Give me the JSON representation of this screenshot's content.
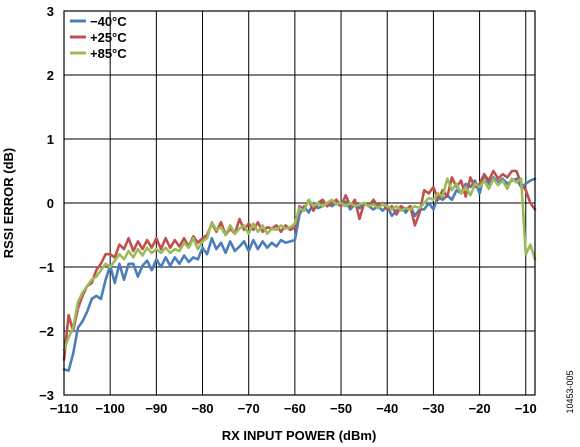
{
  "chart_data": {
    "type": "line",
    "title": "",
    "xlabel": "RX INPUT POWER (dBm)",
    "ylabel": "RSSI ERROR (dB)",
    "xlim": [
      -110,
      -8
    ],
    "ylim": [
      -3,
      3
    ],
    "x_ticks": [
      "−110",
      "−100",
      "−90",
      "−80",
      "−70",
      "−60",
      "−50",
      "−40",
      "−30",
      "−20",
      "−10"
    ],
    "x_tick_values": [
      -110,
      -100,
      -90,
      -80,
      -70,
      -60,
      -50,
      -40,
      -30,
      -20,
      -10
    ],
    "y_ticks": [
      "−3",
      "−2",
      "−1",
      "0",
      "1",
      "2",
      "3"
    ],
    "y_tick_values": [
      -3,
      -2,
      -1,
      0,
      1,
      2,
      3
    ],
    "grid": true,
    "legend_position": "top-left",
    "figure_id": "10453-005",
    "series": [
      {
        "name": "−40°C",
        "color": "#4a7ebb",
        "points": [
          [
            -110,
            -2.6
          ],
          [
            -109,
            -2.62
          ],
          [
            -108,
            -2.35
          ],
          [
            -107,
            -1.95
          ],
          [
            -106,
            -1.85
          ],
          [
            -105,
            -1.7
          ],
          [
            -104,
            -1.5
          ],
          [
            -103,
            -1.45
          ],
          [
            -102,
            -1.5
          ],
          [
            -101,
            -1.2
          ],
          [
            -100,
            -0.98
          ],
          [
            -99,
            -1.25
          ],
          [
            -98,
            -0.95
          ],
          [
            -97,
            -1.2
          ],
          [
            -96,
            -0.95
          ],
          [
            -95,
            -0.95
          ],
          [
            -94,
            -1.15
          ],
          [
            -93,
            -0.98
          ],
          [
            -92,
            -0.9
          ],
          [
            -91,
            -1.05
          ],
          [
            -90,
            -0.88
          ],
          [
            -89,
            -1.0
          ],
          [
            -88,
            -0.85
          ],
          [
            -87,
            -0.98
          ],
          [
            -86,
            -0.85
          ],
          [
            -85,
            -0.95
          ],
          [
            -84,
            -0.82
          ],
          [
            -83,
            -0.92
          ],
          [
            -82,
            -0.85
          ],
          [
            -81,
            -0.88
          ],
          [
            -80,
            -0.7
          ],
          [
            -79,
            -0.8
          ],
          [
            -78,
            -0.55
          ],
          [
            -77,
            -0.72
          ],
          [
            -76,
            -0.62
          ],
          [
            -75,
            -0.78
          ],
          [
            -74,
            -0.6
          ],
          [
            -73,
            -0.75
          ],
          [
            -72,
            -0.68
          ],
          [
            -71,
            -0.6
          ],
          [
            -70,
            -0.75
          ],
          [
            -69,
            -0.58
          ],
          [
            -68,
            -0.72
          ],
          [
            -67,
            -0.6
          ],
          [
            -66,
            -0.7
          ],
          [
            -65,
            -0.62
          ],
          [
            -64,
            -0.68
          ],
          [
            -63,
            -0.58
          ],
          [
            -62,
            -0.62
          ],
          [
            -61,
            -0.6
          ],
          [
            -60,
            -0.58
          ],
          [
            -59,
            -0.18
          ],
          [
            -58,
            -0.05
          ],
          [
            -57,
            -0.15
          ],
          [
            -56,
            0.0
          ],
          [
            -55,
            -0.08
          ],
          [
            -54,
            -0.05
          ],
          [
            -53,
            0.0
          ],
          [
            -52,
            -0.05
          ],
          [
            -51,
            0.0
          ],
          [
            -50,
            -0.05
          ],
          [
            -49,
            0.02
          ],
          [
            -48,
            -0.1
          ],
          [
            -47,
            -0.02
          ],
          [
            -46,
            -0.08
          ],
          [
            -45,
            0.0
          ],
          [
            -44,
            -0.05
          ],
          [
            -43,
            -0.1
          ],
          [
            -42,
            -0.05
          ],
          [
            -41,
            -0.12
          ],
          [
            -40,
            -0.05
          ],
          [
            -39,
            -0.2
          ],
          [
            -38,
            -0.12
          ],
          [
            -37,
            -0.05
          ],
          [
            -36,
            -0.15
          ],
          [
            -35,
            -0.05
          ],
          [
            -34,
            -0.2
          ],
          [
            -33,
            -0.1
          ],
          [
            -32,
            -0.1
          ],
          [
            -31,
            0.0
          ],
          [
            -30,
            -0.1
          ],
          [
            -29,
            0.1
          ],
          [
            -28,
            0.05
          ],
          [
            -27,
            0.12
          ],
          [
            -26,
            0.05
          ],
          [
            -25,
            0.2
          ],
          [
            -24,
            0.15
          ],
          [
            -23,
            0.3
          ],
          [
            -22,
            0.25
          ],
          [
            -21,
            0.35
          ],
          [
            -20,
            0.15
          ],
          [
            -19,
            0.45
          ],
          [
            -18,
            0.3
          ],
          [
            -17,
            0.4
          ],
          [
            -16,
            0.32
          ],
          [
            -15,
            0.38
          ],
          [
            -14,
            0.3
          ],
          [
            -13,
            0.35
          ],
          [
            -12,
            0.38
          ],
          [
            -11,
            0.25
          ],
          [
            -10,
            0.3
          ],
          [
            -9,
            0.35
          ],
          [
            -8,
            0.38
          ]
        ]
      },
      {
        "name": "+25°C",
        "color": "#c0504d",
        "points": [
          [
            -110,
            -2.45
          ],
          [
            -109,
            -1.75
          ],
          [
            -108,
            -2.0
          ],
          [
            -107,
            -1.65
          ],
          [
            -106,
            -1.45
          ],
          [
            -105,
            -1.3
          ],
          [
            -104,
            -1.25
          ],
          [
            -103,
            -1.05
          ],
          [
            -102,
            -0.95
          ],
          [
            -101,
            -0.8
          ],
          [
            -100,
            -0.8
          ],
          [
            -99,
            -0.85
          ],
          [
            -98,
            -0.65
          ],
          [
            -97,
            -0.72
          ],
          [
            -96,
            -0.55
          ],
          [
            -95,
            -0.75
          ],
          [
            -94,
            -0.6
          ],
          [
            -93,
            -0.72
          ],
          [
            -92,
            -0.58
          ],
          [
            -91,
            -0.7
          ],
          [
            -90,
            -0.55
          ],
          [
            -89,
            -0.72
          ],
          [
            -88,
            -0.55
          ],
          [
            -87,
            -0.7
          ],
          [
            -86,
            -0.58
          ],
          [
            -85,
            -0.68
          ],
          [
            -84,
            -0.55
          ],
          [
            -83,
            -0.68
          ],
          [
            -82,
            -0.52
          ],
          [
            -81,
            -0.62
          ],
          [
            -80,
            -0.55
          ],
          [
            -79,
            -0.5
          ],
          [
            -78,
            -0.32
          ],
          [
            -77,
            -0.45
          ],
          [
            -76,
            -0.3
          ],
          [
            -75,
            -0.5
          ],
          [
            -74,
            -0.4
          ],
          [
            -73,
            -0.48
          ],
          [
            -72,
            -0.25
          ],
          [
            -71,
            -0.42
          ],
          [
            -70,
            -0.32
          ],
          [
            -69,
            -0.42
          ],
          [
            -68,
            -0.3
          ],
          [
            -67,
            -0.45
          ],
          [
            -66,
            -0.38
          ],
          [
            -65,
            -0.4
          ],
          [
            -64,
            -0.35
          ],
          [
            -63,
            -0.45
          ],
          [
            -62,
            -0.35
          ],
          [
            -61,
            -0.42
          ],
          [
            -60,
            -0.38
          ],
          [
            -59,
            -0.05
          ],
          [
            -58,
            -0.1
          ],
          [
            -57,
            0.05
          ],
          [
            -56,
            -0.12
          ],
          [
            -55,
            0.0
          ],
          [
            -54,
            0.05
          ],
          [
            -53,
            -0.05
          ],
          [
            -52,
            0.0
          ],
          [
            -51,
            0.05
          ],
          [
            -50,
            -0.05
          ],
          [
            -49,
            0.12
          ],
          [
            -48,
            -0.05
          ],
          [
            -47,
            0.05
          ],
          [
            -46,
            -0.25
          ],
          [
            -45,
            0.0
          ],
          [
            -44,
            -0.05
          ],
          [
            -43,
            0.05
          ],
          [
            -42,
            -0.05
          ],
          [
            -41,
            0.0
          ],
          [
            -40,
            -0.1
          ],
          [
            -39,
            -0.05
          ],
          [
            -38,
            -0.18
          ],
          [
            -37,
            -0.05
          ],
          [
            -36,
            -0.1
          ],
          [
            -35,
            -0.05
          ],
          [
            -34,
            -0.35
          ],
          [
            -33,
            -0.15
          ],
          [
            -32,
            0.2
          ],
          [
            -31,
            0.15
          ],
          [
            -30,
            0.25
          ],
          [
            -29,
            0.05
          ],
          [
            -28,
            0.2
          ],
          [
            -27,
            0.1
          ],
          [
            -26,
            0.4
          ],
          [
            -25,
            0.25
          ],
          [
            -24,
            0.35
          ],
          [
            -23,
            0.1
          ],
          [
            -22,
            0.4
          ],
          [
            -21,
            0.25
          ],
          [
            -20,
            0.3
          ],
          [
            -19,
            0.45
          ],
          [
            -18,
            0.35
          ],
          [
            -17,
            0.5
          ],
          [
            -16,
            0.38
          ],
          [
            -15,
            0.45
          ],
          [
            -14,
            0.4
          ],
          [
            -13,
            0.5
          ],
          [
            -12,
            0.5
          ],
          [
            -11,
            0.3
          ],
          [
            -10,
            0.2
          ],
          [
            -9,
            0.0
          ],
          [
            -8,
            -0.1
          ]
        ]
      },
      {
        "name": "+85°C",
        "color": "#9bbb59",
        "points": [
          [
            -110,
            -2.3
          ],
          [
            -109,
            -2.1
          ],
          [
            -108,
            -1.95
          ],
          [
            -107,
            -1.55
          ],
          [
            -106,
            -1.4
          ],
          [
            -105,
            -1.3
          ],
          [
            -104,
            -1.2
          ],
          [
            -103,
            -1.15
          ],
          [
            -102,
            -1.05
          ],
          [
            -101,
            -0.95
          ],
          [
            -100,
            -1.0
          ],
          [
            -99,
            -0.9
          ],
          [
            -98,
            -0.8
          ],
          [
            -97,
            -0.88
          ],
          [
            -96,
            -0.75
          ],
          [
            -95,
            -0.85
          ],
          [
            -94,
            -0.72
          ],
          [
            -93,
            -0.82
          ],
          [
            -92,
            -0.7
          ],
          [
            -91,
            -0.78
          ],
          [
            -90,
            -0.72
          ],
          [
            -89,
            -0.78
          ],
          [
            -88,
            -0.7
          ],
          [
            -87,
            -0.78
          ],
          [
            -86,
            -0.72
          ],
          [
            -85,
            -0.75
          ],
          [
            -84,
            -0.62
          ],
          [
            -83,
            -0.7
          ],
          [
            -82,
            -0.55
          ],
          [
            -81,
            -0.72
          ],
          [
            -80,
            -0.6
          ],
          [
            -79,
            -0.55
          ],
          [
            -78,
            -0.3
          ],
          [
            -77,
            -0.42
          ],
          [
            -76,
            -0.38
          ],
          [
            -75,
            -0.5
          ],
          [
            -74,
            -0.35
          ],
          [
            -73,
            -0.48
          ],
          [
            -72,
            -0.4
          ],
          [
            -71,
            -0.35
          ],
          [
            -70,
            -0.48
          ],
          [
            -69,
            -0.32
          ],
          [
            -68,
            -0.45
          ],
          [
            -67,
            -0.35
          ],
          [
            -66,
            -0.48
          ],
          [
            -65,
            -0.4
          ],
          [
            -64,
            -0.42
          ],
          [
            -63,
            -0.35
          ],
          [
            -62,
            -0.4
          ],
          [
            -61,
            -0.38
          ],
          [
            -60,
            -0.32
          ],
          [
            -59,
            -0.08
          ],
          [
            -58,
            -0.12
          ],
          [
            -57,
            0.05
          ],
          [
            -56,
            -0.05
          ],
          [
            -55,
            0.0
          ],
          [
            -54,
            -0.05
          ],
          [
            -53,
            0.0
          ],
          [
            -52,
            0.05
          ],
          [
            -51,
            -0.02
          ],
          [
            -50,
            0.0
          ],
          [
            -49,
            -0.05
          ],
          [
            -48,
            0.0
          ],
          [
            -47,
            -0.05
          ],
          [
            -46,
            -0.02
          ],
          [
            -45,
            0.0
          ],
          [
            -44,
            -0.05
          ],
          [
            -43,
            -0.02
          ],
          [
            -42,
            -0.08
          ],
          [
            -41,
            -0.02
          ],
          [
            -40,
            -0.05
          ],
          [
            -39,
            -0.1
          ],
          [
            -38,
            -0.05
          ],
          [
            -37,
            -0.12
          ],
          [
            -36,
            -0.08
          ],
          [
            -35,
            -0.1
          ],
          [
            -34,
            -0.05
          ],
          [
            -33,
            -0.08
          ],
          [
            -32,
            0.0
          ],
          [
            -31,
            0.08
          ],
          [
            -30,
            0.05
          ],
          [
            -29,
            0.15
          ],
          [
            -28,
            0.1
          ],
          [
            -27,
            0.38
          ],
          [
            -26,
            0.2
          ],
          [
            -25,
            0.3
          ],
          [
            -24,
            0.15
          ],
          [
            -23,
            0.25
          ],
          [
            -22,
            0.12
          ],
          [
            -21,
            0.3
          ],
          [
            -20,
            0.25
          ],
          [
            -19,
            0.35
          ],
          [
            -18,
            0.22
          ],
          [
            -17,
            0.38
          ],
          [
            -16,
            0.28
          ],
          [
            -15,
            0.35
          ],
          [
            -14,
            0.22
          ],
          [
            -13,
            0.38
          ],
          [
            -12,
            0.32
          ],
          [
            -11,
            0.38
          ],
          [
            -10,
            -0.8
          ],
          [
            -9,
            -0.65
          ],
          [
            -8,
            -0.88
          ]
        ]
      }
    ]
  }
}
